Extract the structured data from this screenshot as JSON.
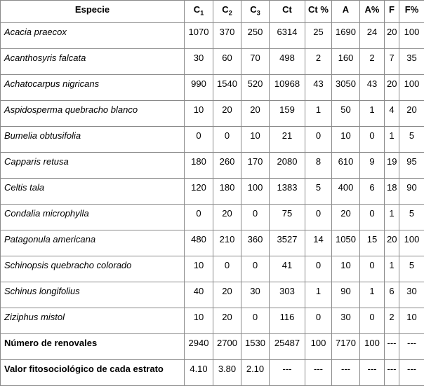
{
  "headers": {
    "especie": "Especie",
    "c1": {
      "base": "C",
      "sub": "1"
    },
    "c2": {
      "base": "C",
      "sub": "2"
    },
    "c3": {
      "base": "C",
      "sub": "3"
    },
    "ct": "Ct",
    "ct_pct": "Ct %",
    "a": "A",
    "a_pct": "A%",
    "f": "F",
    "f_pct": "F%"
  },
  "rows": [
    {
      "name": "Acacia praecox",
      "values": [
        "1070",
        "370",
        "250",
        "6314",
        "25",
        "1690",
        "24",
        "20",
        "100"
      ]
    },
    {
      "name": "Acanthosyris falcata",
      "values": [
        "30",
        "60",
        "70",
        "498",
        "2",
        "160",
        "2",
        "7",
        "35"
      ]
    },
    {
      "name": "Achatocarpus nigricans",
      "values": [
        "990",
        "1540",
        "520",
        "10968",
        "43",
        "3050",
        "43",
        "20",
        "100"
      ]
    },
    {
      "name": "Aspidosperma quebracho blanco",
      "values": [
        "10",
        "20",
        "20",
        "159",
        "1",
        "50",
        "1",
        "4",
        "20"
      ]
    },
    {
      "name": "Bumelia obtusifolia",
      "values": [
        "0",
        "0",
        "10",
        "21",
        "0",
        "10",
        "0",
        "1",
        "5"
      ]
    },
    {
      "name": "Capparis retusa",
      "values": [
        "180",
        "260",
        "170",
        "2080",
        "8",
        "610",
        "9",
        "19",
        "95"
      ]
    },
    {
      "name": "Celtis tala",
      "values": [
        "120",
        "180",
        "100",
        "1383",
        "5",
        "400",
        "6",
        "18",
        "90"
      ]
    },
    {
      "name": "Condalia microphylla",
      "values": [
        "0",
        "20",
        "0",
        "75",
        "0",
        "20",
        "0",
        "1",
        "5"
      ]
    },
    {
      "name": "Patagonula americana",
      "values": [
        "480",
        "210",
        "360",
        "3527",
        "14",
        "1050",
        "15",
        "20",
        "100"
      ]
    },
    {
      "name": "Schinopsis quebracho  colorado",
      "values": [
        "10",
        "0",
        "0",
        "41",
        "0",
        "10",
        "0",
        "1",
        "5"
      ]
    },
    {
      "name": "Schinus longifolius",
      "values": [
        "40",
        "20",
        "30",
        "303",
        "1",
        "90",
        "1",
        "6",
        "30"
      ]
    },
    {
      "name": "Ziziphus mistol",
      "values": [
        "10",
        "20",
        "0",
        "116",
        "0",
        "30",
        "0",
        "2",
        "10"
      ]
    }
  ],
  "totals": [
    {
      "name": "Número de renovales",
      "values": [
        "2940",
        "2700",
        "1530",
        "25487",
        "100",
        "7170",
        "100",
        "---",
        "---"
      ]
    },
    {
      "name": "Valor fitosociológico de cada estrato",
      "values": [
        "4.10",
        "3.80",
        "2.10",
        "---",
        "---",
        "---",
        "---",
        "---",
        "---"
      ]
    }
  ]
}
